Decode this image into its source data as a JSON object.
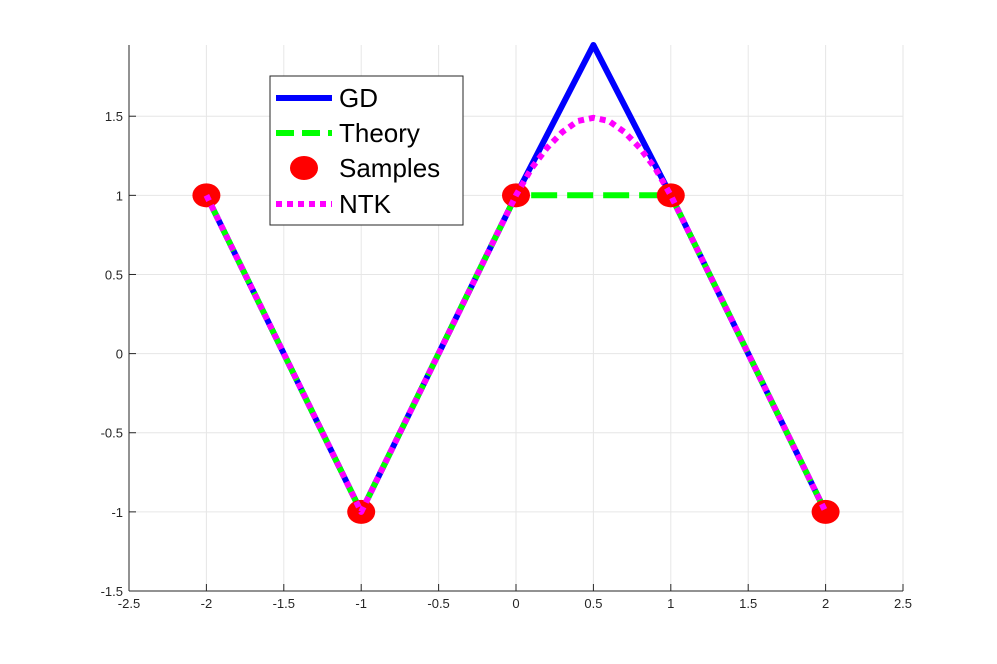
{
  "chart_data": {
    "type": "line",
    "title": "",
    "xlabel": "",
    "ylabel": "",
    "xlim": [
      -2.5,
      2.5
    ],
    "ylim": [
      -1.5,
      1.95
    ],
    "grid": true,
    "legend_placement": "top-left",
    "xticks": [
      -2.5,
      -2,
      -1.5,
      -1,
      -0.5,
      0,
      0.5,
      1,
      1.5,
      2,
      2.5
    ],
    "yticks": [
      -1.5,
      -1,
      -0.5,
      0,
      0.5,
      1,
      1.5
    ],
    "xtick_labels": [
      "-2.5",
      "-2",
      "-1.5",
      "-1",
      "-0.5",
      "0",
      "0.5",
      "1",
      "1.5",
      "2",
      "2.5"
    ],
    "ytick_labels": [
      "-1.5",
      "-1",
      "-0.5",
      "0",
      "0.5",
      "1",
      "1.5"
    ],
    "series": [
      {
        "name": "GD",
        "style": "solid",
        "color": "#0000ff",
        "x": [
          -2,
          -1,
          0,
          0.5,
          1,
          2
        ],
        "y": [
          1,
          -1,
          1,
          1.95,
          1,
          -1
        ]
      },
      {
        "name": "Theory",
        "style": "dashed",
        "color": "#00ff00",
        "x": [
          -2,
          -1,
          0,
          1,
          2
        ],
        "y": [
          1,
          -1,
          1,
          1,
          -1
        ]
      },
      {
        "name": "Samples",
        "style": "markers",
        "color": "#ff0000",
        "x": [
          -2,
          -1,
          0,
          1,
          2
        ],
        "y": [
          1,
          -1,
          1,
          1,
          -1
        ]
      },
      {
        "name": "NTK",
        "style": "dotted",
        "color": "#ff00ff",
        "x": [
          -2,
          -1,
          0,
          0.1,
          0.2,
          0.3,
          0.4,
          0.5,
          0.6,
          0.7,
          0.8,
          0.9,
          1,
          2
        ],
        "y": [
          1,
          -1,
          1,
          1.17,
          1.3,
          1.4,
          1.47,
          1.49,
          1.47,
          1.4,
          1.3,
          1.17,
          1,
          -1
        ]
      }
    ]
  }
}
